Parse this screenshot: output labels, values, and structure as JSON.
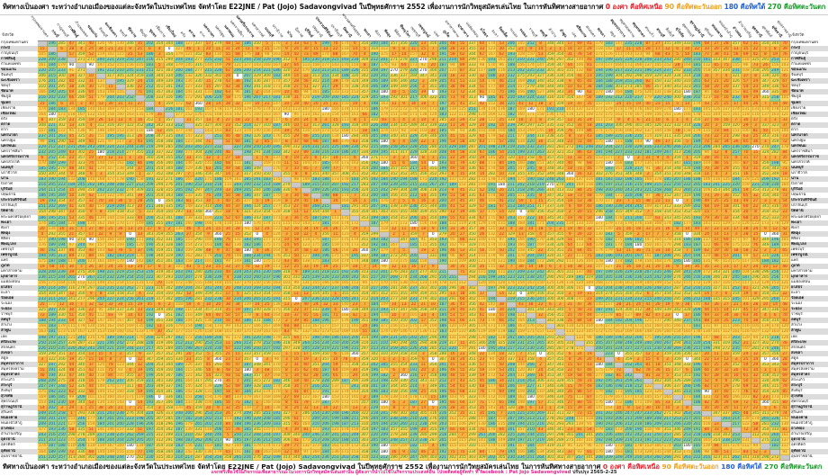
{
  "title": {
    "main": "ทิศทางเป็นองศา ระหว่างอำเภอเมืองของแต่ละจังหวัดในประเทศไทย จัดทำโดย E22JNE / Pat (Jojo) Sadavongvivad ในปีพุทธศักราช 2552 เพื่องานการนักวิทยุสมัครเล่นไทย ในการหันทิศทางสายอากาศ",
    "north": "0 องศา คือทิศเหนือ",
    "east": "90 คือทิศตะวันออก",
    "south": "180 คือทิศใต้",
    "west": "270 คือทิศตะวันตก"
  },
  "corner_label": "จังหวัด",
  "legend_colors": {
    "north": "#e8202a",
    "east": "#f0a020",
    "south": "#2060d0",
    "west": "#1a9a2a"
  },
  "cell_colors": {
    "q1": "#f7b040",
    "q2": "#fcd45a",
    "q3": "#8fd39a",
    "q4": "#fcd45a",
    "diagonal": "#c8c8c8"
  },
  "provinces": [
    "กรุงเทพมหานคร",
    "กระบี่",
    "กาญจนบุรี",
    "กาฬสินธุ์",
    "กำแพงเพชร",
    "ขอนแก่น",
    "จันทบุรี",
    "ฉะเชิงเทรา",
    "ชลบุรี",
    "ชัยนาท",
    "ชัยภูมิ",
    "ชุมพร",
    "เชียงราย",
    "เชียงใหม่",
    "ตรัง",
    "ตราด",
    "ตาก",
    "นครนายก",
    "นครปฐม",
    "นครพนม",
    "นครราชสีมา",
    "นครศรีธรรมราช",
    "นครสวรรค์",
    "นนทบุรี",
    "นราธิวาส",
    "น่าน",
    "บึงกาฬ",
    "บุรีรัมย์",
    "ปทุมธานี",
    "ประจวบคีรีขันธ์",
    "ปราจีนบุรี",
    "ปัตตานี",
    "พระนครศรีอยุธยา",
    "พะเยา",
    "พังงา",
    "พัทลุง",
    "พิจิตร",
    "พิษณุโลก",
    "เพชรบุรี",
    "เพชรบูรณ์",
    "แพร่",
    "ภูเก็ต",
    "มหาสารคาม",
    "มุกดาหาร",
    "แม่ฮ่องสอน",
    "ยโสธร",
    "ยะลา",
    "ร้อยเอ็ด",
    "ระนอง",
    "ระยอง",
    "ราชบุรี",
    "ลพบุรี",
    "ลำปาง",
    "ลำพูน",
    "เลย",
    "ศรีสะเกษ",
    "สกลนคร",
    "สงขลา",
    "สตูล",
    "สมุทรปราการ",
    "สมุทรสงคราม",
    "สมุทรสาคร",
    "สระแก้ว",
    "สระบุรี",
    "สิงห์บุรี",
    "สุโขทัย",
    "สุพรรณบุรี",
    "สุราษฎร์ธานี",
    "สุรินทร์",
    "หนองคาย",
    "หนองบัวลำภู",
    "อ่างทอง",
    "อำนาจเจริญ",
    "อุดรธานี",
    "อุตรดิตถ์",
    "อุทัยธานี",
    "อุบลราชธานี"
  ],
  "footer": {
    "credit": "แจกฟรีเพื่อใช้ในกิจกรรมเพื่อสาธารณะในวงการนักวิทยุสมัครเล่นเท่านั้น ผู้ต้องการนำไปใช้ในกิจกรรมประสงค์อื่น โปรดติดต่อผู้จัดทำ ที่ facebook : Pat Jojo Sadavongvivad",
    "updated": "ปรับปรุง 2565-2-25"
  }
}
